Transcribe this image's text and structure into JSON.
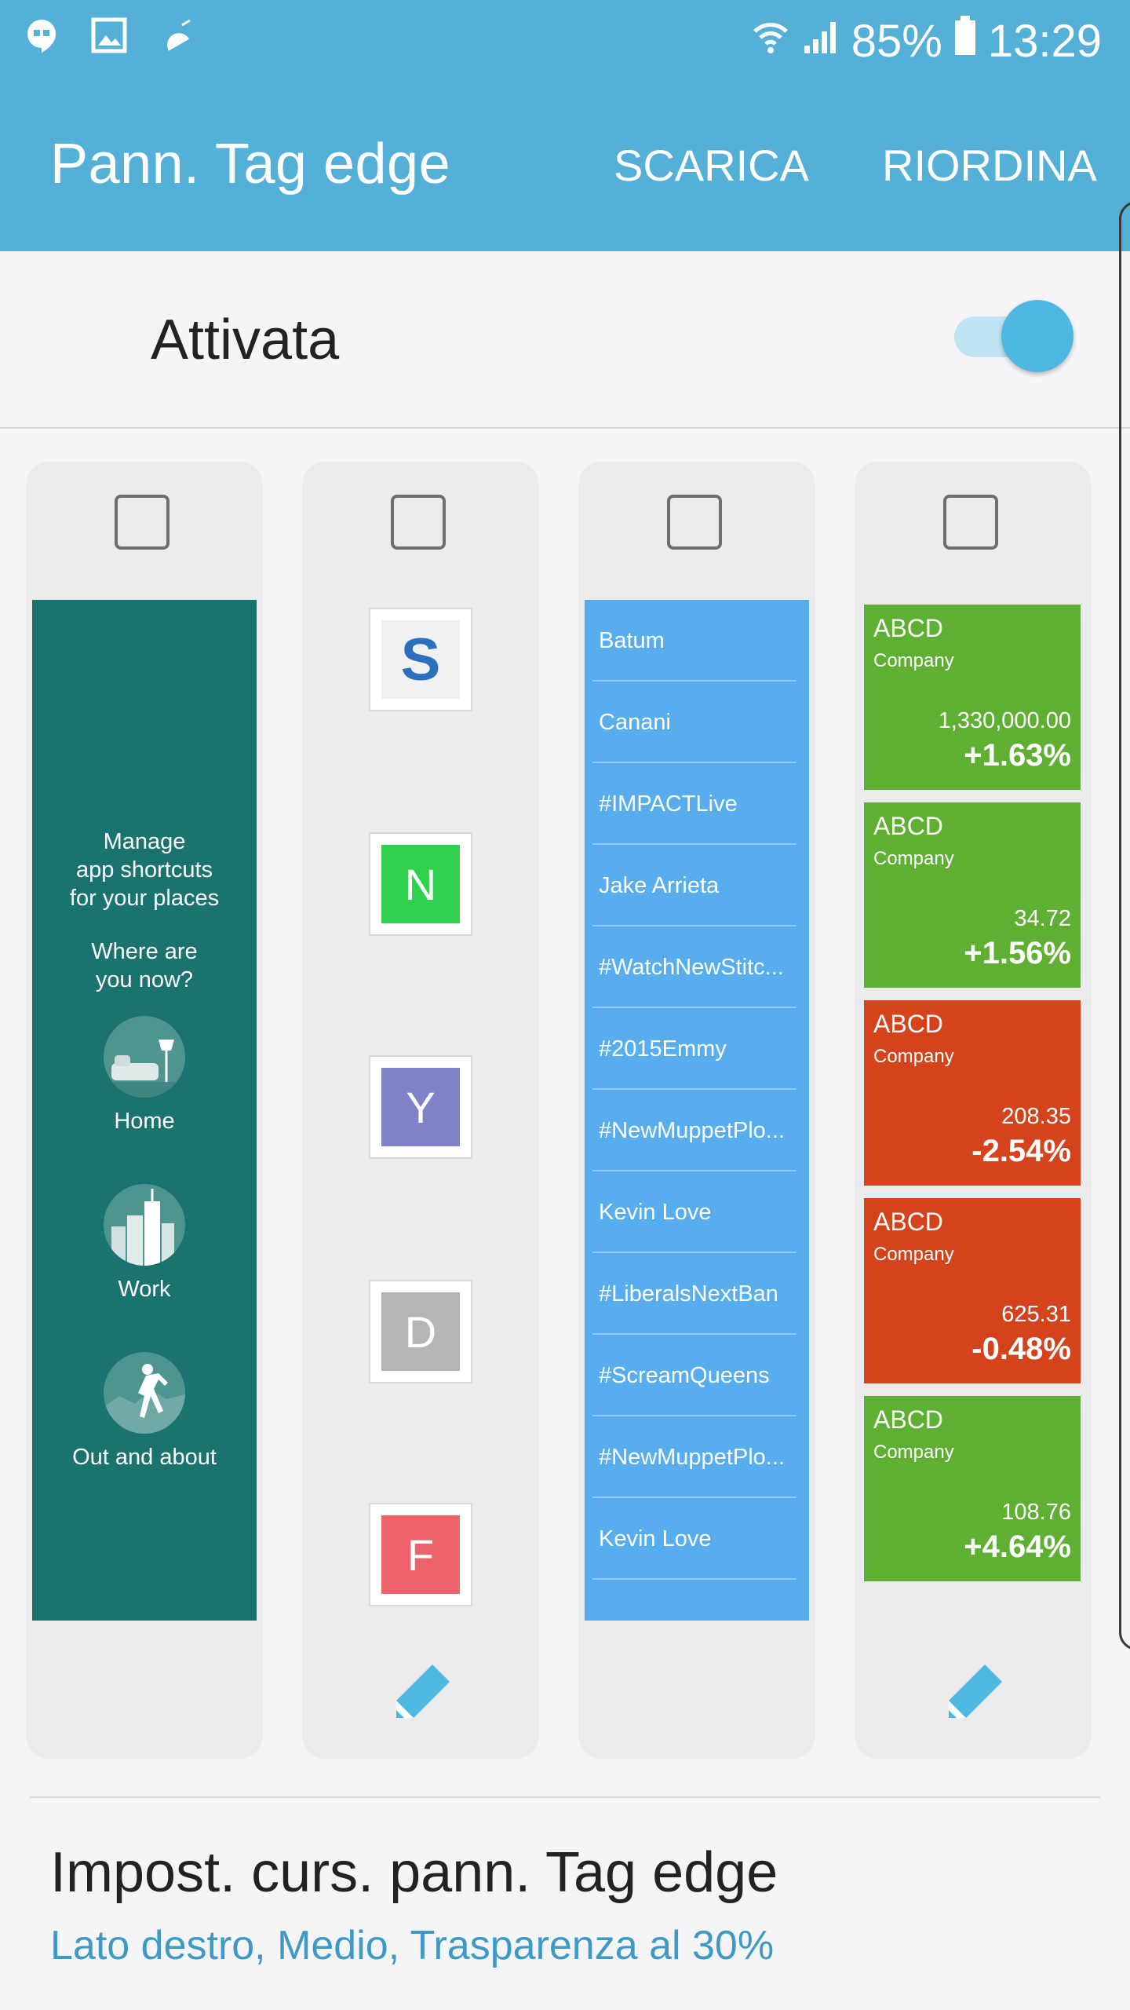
{
  "status_bar": {
    "battery": "85%",
    "time": "13:29",
    "icons": [
      "hangouts-icon",
      "gallery-icon",
      "android-debug-icon",
      "wifi-icon",
      "signal-icon",
      "battery-icon"
    ]
  },
  "app_bar": {
    "title": "Pann. Tag edge",
    "action_download": "SCARICA",
    "action_reorder": "RIORDINA"
  },
  "master_switch": {
    "label": "Attivata",
    "on": true
  },
  "panels": [
    {
      "id": "places",
      "checked": false,
      "intro": "Manage app shortcuts for your places",
      "intro_lines": [
        "Manage",
        "app shortcuts",
        "for your places"
      ],
      "question_lines": [
        "Where are",
        "you now?"
      ],
      "places": [
        {
          "label": "Home",
          "icon": "home-icon"
        },
        {
          "label": "Work",
          "icon": "city-icon"
        },
        {
          "label": "Out and about",
          "icon": "walking-person-icon"
        }
      ]
    },
    {
      "id": "apps",
      "checked": false,
      "apps": [
        {
          "letter": "S",
          "color": "#2c6fbf"
        },
        {
          "letter": "N",
          "color": "#2fd14f"
        },
        {
          "letter": "Y",
          "color": "#7f81c9"
        },
        {
          "letter": "D",
          "color": "#b5b5b5"
        },
        {
          "letter": "F",
          "color": "#ec636b"
        }
      ]
    },
    {
      "id": "trends",
      "checked": false,
      "items": [
        "Batum",
        "Canani",
        "#IMPACTLive",
        "Jake Arrieta",
        "#WatchNewStitc...",
        "#2015Emmy",
        "#NewMuppetPlo...",
        "Kevin Love",
        "#LiberalsNextBan",
        "#ScreamQueens",
        "#NewMuppetPlo...",
        "Kevin Love"
      ]
    },
    {
      "id": "stocks",
      "checked": false,
      "stocks": [
        {
          "name": "ABCD",
          "sub": "Company",
          "price": "1,330,000.00",
          "change": "+1.63%",
          "color": "#5eaf32"
        },
        {
          "name": "ABCD",
          "sub": "Company",
          "price": "34.72",
          "change": "+1.56%",
          "color": "#5eaf32"
        },
        {
          "name": "ABCD",
          "sub": "Company",
          "price": "208.35",
          "change": "-2.54%",
          "color": "#d5431d"
        },
        {
          "name": "ABCD",
          "sub": "Company",
          "price": "625.31",
          "change": "-0.48%",
          "color": "#d5431d"
        },
        {
          "name": "ABCD",
          "sub": "Company",
          "price": "108.76",
          "change": "+4.64%",
          "color": "#5eaf32"
        }
      ]
    }
  ],
  "handle_settings": {
    "title": "Impost. curs. pann. Tag edge",
    "summary": "Lato destro, Medio, Trasparenza al 30%"
  },
  "colors": {
    "accent": "#55b0d8",
    "switch_thumb": "#4fb8e2",
    "places_bg": "#1b7370",
    "trends_bg": "#58adee",
    "link": "#3e9ac4"
  }
}
